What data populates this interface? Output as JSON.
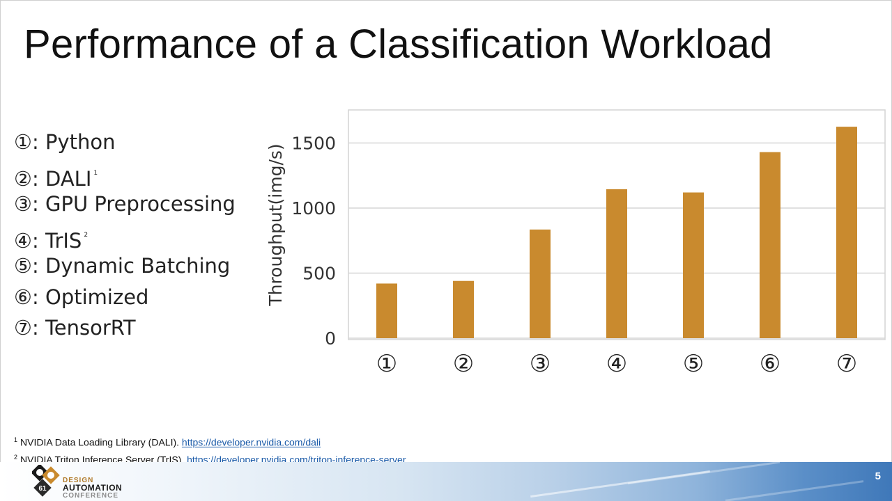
{
  "slide": {
    "title": "Performance of a Classification Workload",
    "page_number": "5"
  },
  "legend": [
    {
      "marker": "①",
      "label": "Python",
      "sup": ""
    },
    {
      "marker": "②",
      "label": "DALI",
      "sup": "1"
    },
    {
      "marker": "③",
      "label": "GPU Preprocessing",
      "sup": ""
    },
    {
      "marker": "④",
      "label": "TrIS",
      "sup": "2"
    },
    {
      "marker": "⑤",
      "label": "Dynamic Batching",
      "sup": ""
    },
    {
      "marker": "⑥",
      "label": "Optimized",
      "sup": ""
    },
    {
      "marker": "⑦",
      "label": "TensorRT",
      "sup": ""
    }
  ],
  "chart_data": {
    "type": "bar",
    "categories": [
      "①",
      "②",
      "③",
      "④",
      "⑤",
      "⑥",
      "⑦"
    ],
    "values": [
      420,
      440,
      835,
      1145,
      1120,
      1430,
      1625
    ],
    "ylabel": "Throughput(img/s)",
    "xlabel": "",
    "ylim": [
      0,
      1750
    ],
    "yticks": [
      0,
      500,
      1000,
      1500
    ],
    "grid": true,
    "bar_color": "#c98a2e"
  },
  "footnotes": [
    {
      "num": "1",
      "text": "NVIDIA Data Loading Library (DALI).",
      "link": "https://developer.nvidia.com/dali"
    },
    {
      "num": "2",
      "text": "NVIDIA Triton Inference Server (TrIS).",
      "link": "https://developer.nvidia.com/triton-inference-server"
    }
  ],
  "logo": {
    "line1": "DESIGN",
    "line2": "AUTOMATION",
    "line3": "CONFERENCE",
    "badge": "61"
  }
}
